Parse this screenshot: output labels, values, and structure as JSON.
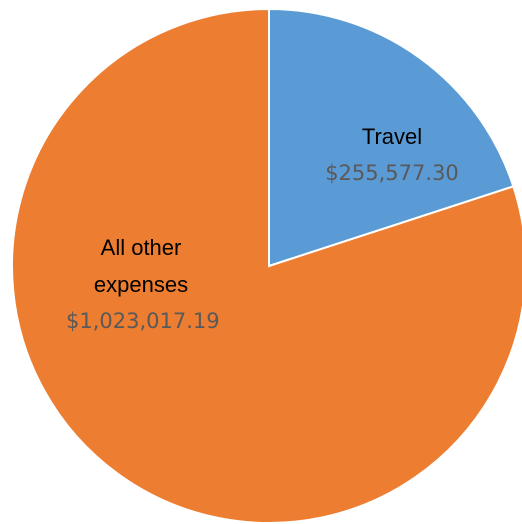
{
  "chart_data": {
    "type": "pie",
    "categories": [
      "Travel",
      "All other expenses"
    ],
    "values": [
      255577.3,
      1023017.19
    ],
    "value_labels": [
      "$255,577.30",
      "$1,023,017.19"
    ],
    "colors": [
      "#5b9bd5",
      "#ed7d31"
    ]
  }
}
